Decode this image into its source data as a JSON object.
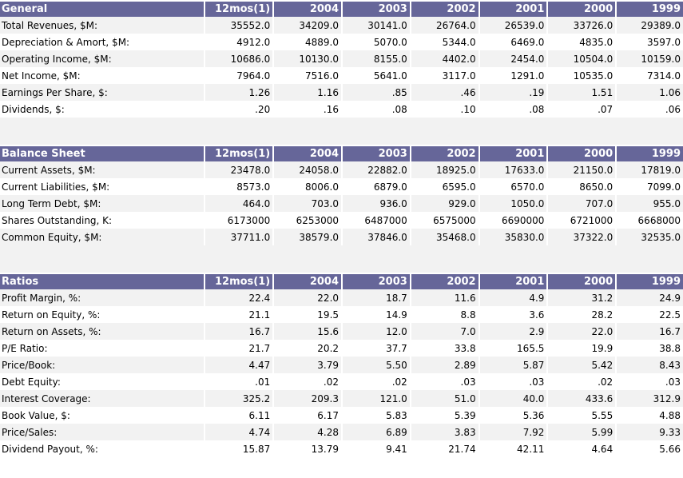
{
  "years": [
    "12mos(1)",
    "2004",
    "2003",
    "2002",
    "2001",
    "2000",
    "1999"
  ],
  "sections": [
    {
      "title": "General",
      "rows": [
        {
          "label": "Total Revenues, $M:",
          "values": [
            "35552.0",
            "34209.0",
            "30141.0",
            "26764.0",
            "26539.0",
            "33726.0",
            "29389.0"
          ]
        },
        {
          "label": "Depreciation & Amort, $M:",
          "values": [
            "4912.0",
            "4889.0",
            "5070.0",
            "5344.0",
            "6469.0",
            "4835.0",
            "3597.0"
          ]
        },
        {
          "label": "Operating Income, $M:",
          "values": [
            "10686.0",
            "10130.0",
            "8155.0",
            "4402.0",
            "2454.0",
            "10504.0",
            "10159.0"
          ]
        },
        {
          "label": "Net Income, $M:",
          "values": [
            "7964.0",
            "7516.0",
            "5641.0",
            "3117.0",
            "1291.0",
            "10535.0",
            "7314.0"
          ]
        },
        {
          "label": "Earnings Per Share, $:",
          "values": [
            "1.26",
            "1.16",
            ".85",
            ".46",
            ".19",
            "1.51",
            "1.06"
          ]
        },
        {
          "label": "Dividends, $:",
          "values": [
            ".20",
            ".16",
            ".08",
            ".10",
            ".08",
            ".07",
            ".06"
          ]
        }
      ]
    },
    {
      "title": "Balance Sheet",
      "rows": [
        {
          "label": "Current Assets, $M:",
          "values": [
            "23478.0",
            "24058.0",
            "22882.0",
            "18925.0",
            "17633.0",
            "21150.0",
            "17819.0"
          ]
        },
        {
          "label": "Current Liabilities, $M:",
          "values": [
            "8573.0",
            "8006.0",
            "6879.0",
            "6595.0",
            "6570.0",
            "8650.0",
            "7099.0"
          ]
        },
        {
          "label": "Long Term Debt, $M:",
          "values": [
            "464.0",
            "703.0",
            "936.0",
            "929.0",
            "1050.0",
            "707.0",
            "955.0"
          ]
        },
        {
          "label": "Shares Outstanding, K:",
          "values": [
            "6173000",
            "6253000",
            "6487000",
            "6575000",
            "6690000",
            "6721000",
            "6668000"
          ]
        },
        {
          "label": "Common Equity, $M:",
          "values": [
            "37711.0",
            "38579.0",
            "37846.0",
            "35468.0",
            "35830.0",
            "37322.0",
            "32535.0"
          ]
        }
      ]
    },
    {
      "title": "Ratios",
      "rows": [
        {
          "label": "Profit Margin, %:",
          "values": [
            "22.4",
            "22.0",
            "18.7",
            "11.6",
            "4.9",
            "31.2",
            "24.9"
          ]
        },
        {
          "label": "Return on Equity, %:",
          "values": [
            "21.1",
            "19.5",
            "14.9",
            "8.8",
            "3.6",
            "28.2",
            "22.5"
          ]
        },
        {
          "label": "Return on Assets, %:",
          "values": [
            "16.7",
            "15.6",
            "12.0",
            "7.0",
            "2.9",
            "22.0",
            "16.7"
          ]
        },
        {
          "label": "P/E Ratio:",
          "values": [
            "21.7",
            "20.2",
            "37.7",
            "33.8",
            "165.5",
            "19.9",
            "38.8"
          ]
        },
        {
          "label": "Price/Book:",
          "values": [
            "4.47",
            "3.79",
            "5.50",
            "2.89",
            "5.87",
            "5.42",
            "8.43"
          ]
        },
        {
          "label": "Debt Equity:",
          "values": [
            ".01",
            ".02",
            ".02",
            ".03",
            ".03",
            ".02",
            ".03"
          ]
        },
        {
          "label": "Interest Coverage:",
          "values": [
            "325.2",
            "209.3",
            "121.0",
            "51.0",
            "40.0",
            "433.6",
            "312.9"
          ]
        },
        {
          "label": "Book Value, $:",
          "values": [
            "6.11",
            "6.17",
            "5.83",
            "5.39",
            "5.36",
            "5.55",
            "4.88"
          ]
        },
        {
          "label": "Price/Sales:",
          "values": [
            "4.74",
            "4.28",
            "6.89",
            "3.83",
            "7.92",
            "5.99",
            "9.33"
          ]
        },
        {
          "label": "Dividend Payout, %:",
          "values": [
            "15.87",
            "13.79",
            "9.41",
            "21.74",
            "42.11",
            "4.64",
            "5.66"
          ]
        }
      ]
    }
  ],
  "colors": {
    "header_bg": "#666699",
    "header_text": "#ffffff",
    "row_alt": "#f2f2f2"
  }
}
